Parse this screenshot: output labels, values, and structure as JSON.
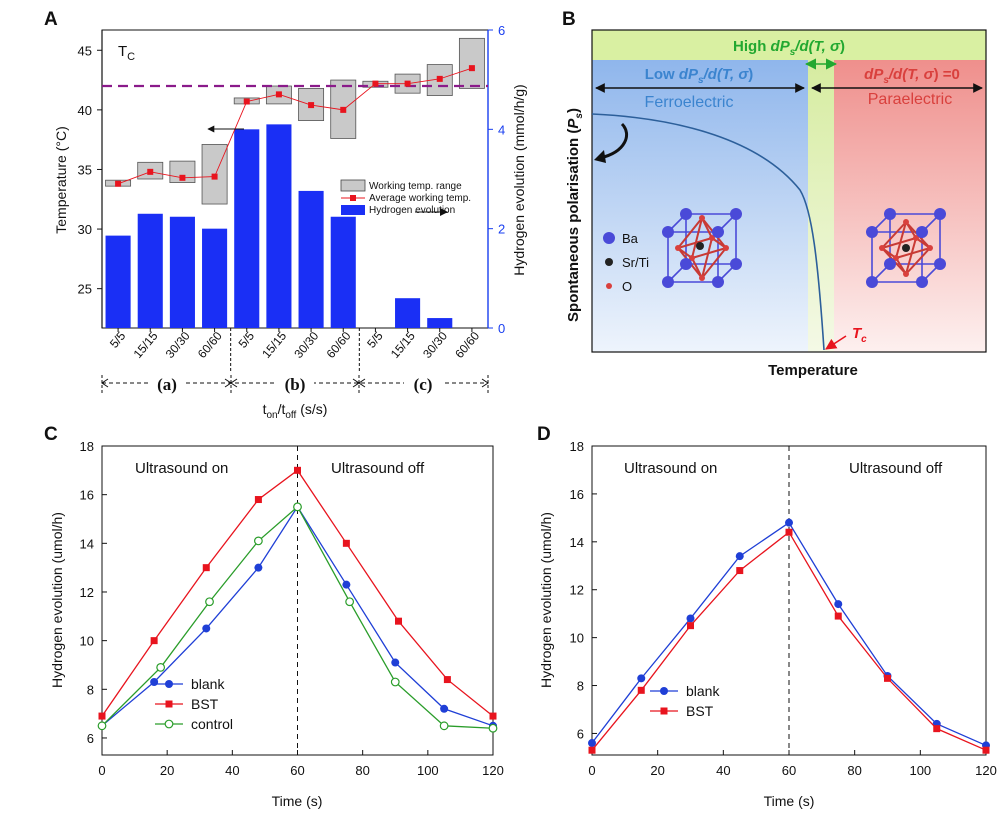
{
  "panels": {
    "a": "A",
    "b": "B",
    "c": "C",
    "d": "D"
  },
  "chart_data": [
    {
      "id": "A",
      "type": "bar+line",
      "tc_label_main": "T",
      "tc_label_sub": "C",
      "categories": [
        "5/5",
        "15/15",
        "30/30",
        "60/60",
        "5/5",
        "15/15",
        "30/30",
        "60/60",
        "5/5",
        "15/15",
        "30/30",
        "60/60"
      ],
      "groups": [
        "(a)",
        "(b)",
        "(c)"
      ],
      "xlabel_main": "t",
      "xlabel_sub1": "on",
      "xlabel_mid": "/t",
      "xlabel_sub2": "off",
      "xlabel_unit": " (s/s)",
      "ylabel_left": "Temperature (°C)",
      "ylim_left": [
        21.7,
        46.7
      ],
      "yticks_left": [
        "25",
        "30",
        "35",
        "40",
        "45"
      ],
      "ylabel_right": "Hydrogen evolution (mmol/h/g)",
      "ylim_right": [
        0,
        6
      ],
      "yticks_right": [
        "0",
        "2",
        "4",
        "6"
      ],
      "tc_value": 42,
      "hydrogen": [
        1.86,
        2.3,
        2.24,
        2.0,
        4.0,
        4.1,
        2.76,
        2.24,
        0,
        0.6,
        0.2,
        0
      ],
      "avg_temp": [
        33.8,
        34.8,
        34.3,
        34.4,
        40.7,
        41.3,
        40.4,
        40.0,
        42.2,
        42.2,
        42.6,
        43.5
      ],
      "temp_range": [
        [
          33.6,
          34.1
        ],
        [
          34.2,
          35.6
        ],
        [
          33.9,
          35.7
        ],
        [
          32.1,
          37.1
        ],
        [
          40.5,
          41.0
        ],
        [
          40.5,
          42.0
        ],
        [
          39.1,
          41.8
        ],
        [
          37.6,
          42.5
        ],
        [
          41.9,
          42.4
        ],
        [
          41.4,
          43.0
        ],
        [
          41.2,
          43.8
        ],
        [
          41.8,
          46.0
        ]
      ],
      "legend": [
        "Working temp. range",
        "Average working temp.",
        "Hydrogen evolution"
      ]
    },
    {
      "id": "B",
      "type": "diagram-curve",
      "top_band": {
        "pre": "High ",
        "math": "dP",
        "sub": "s",
        "post": "/d(T, ",
        "sigma": "σ",
        "end": ")"
      },
      "left_band": {
        "pre": "Low ",
        "math": "dP",
        "sub": "s",
        "post": "/d(T, ",
        "sigma": "σ",
        "end": ")"
      },
      "right_band": {
        "math": "dP",
        "sub": "s",
        "post": "/d(T, ",
        "sigma": "σ",
        "end": ") =0"
      },
      "ferro": "Ferroelectric",
      "para": "Paraelectric",
      "ylabel_main": "Spontaneous polarisation (",
      "ylabel_p": "P",
      "ylabel_sub": "s",
      "ylabel_end": ")",
      "xlabel": "Temperature",
      "tc_main": "T",
      "tc_sub": "c",
      "legend": [
        "Ba",
        "Sr/Ti",
        "O"
      ]
    },
    {
      "id": "C",
      "type": "line",
      "xlabel": "Time (s)",
      "ylabel": "Hydrogen evolution (umol/h)",
      "xlim": [
        0,
        120
      ],
      "ylim": [
        5.3,
        18
      ],
      "xticks": [
        "0",
        "20",
        "40",
        "60",
        "80",
        "100",
        "120"
      ],
      "yticks": [
        "6",
        "8",
        "10",
        "12",
        "14",
        "16",
        "18"
      ],
      "annot_left": "Ultrasound on",
      "annot_right": "Ultrasound off",
      "series": [
        {
          "name": "blank",
          "color": "#1f3fd6",
          "marker": "circle",
          "x": [
            0,
            16,
            32,
            48,
            60,
            75,
            90,
            105,
            120
          ],
          "y": [
            6.5,
            8.3,
            10.5,
            13.0,
            15.5,
            12.3,
            9.1,
            7.2,
            6.5
          ]
        },
        {
          "name": "BST",
          "color": "#e8141e",
          "marker": "square",
          "x": [
            0,
            16,
            32,
            48,
            60,
            75,
            91,
            106,
            120
          ],
          "y": [
            6.9,
            10.0,
            13.0,
            15.8,
            17.0,
            14.0,
            10.8,
            8.4,
            6.9
          ]
        },
        {
          "name": "control",
          "color": "#2a9d2a",
          "marker": "open-circle",
          "x": [
            0,
            18,
            33,
            48,
            60,
            76,
            90,
            105,
            120
          ],
          "y": [
            6.5,
            8.9,
            11.6,
            14.1,
            15.5,
            11.6,
            8.3,
            6.5,
            6.4
          ]
        }
      ]
    },
    {
      "id": "D",
      "type": "line",
      "xlabel": "Time (s)",
      "ylabel": "Hydrogen evolution (umol/h)",
      "xlim": [
        0,
        120
      ],
      "ylim": [
        5.1,
        18
      ],
      "xticks": [
        "0",
        "20",
        "40",
        "60",
        "80",
        "100",
        "120"
      ],
      "yticks": [
        "6",
        "8",
        "10",
        "12",
        "14",
        "16",
        "18"
      ],
      "annot_left": "Ultrasound on",
      "annot_right": "Ultrasound off",
      "series": [
        {
          "name": "blank",
          "color": "#1f3fd6",
          "marker": "circle",
          "x": [
            0,
            15,
            30,
            45,
            60,
            75,
            90,
            105,
            120
          ],
          "y": [
            5.6,
            8.3,
            10.8,
            13.4,
            14.8,
            11.4,
            8.4,
            6.4,
            5.5
          ]
        },
        {
          "name": "BST",
          "color": "#e8141e",
          "marker": "square",
          "x": [
            0,
            15,
            30,
            45,
            60,
            75,
            90,
            105,
            120
          ],
          "y": [
            5.3,
            7.8,
            10.5,
            12.8,
            14.4,
            10.9,
            8.3,
            6.2,
            5.3
          ]
        }
      ]
    }
  ]
}
